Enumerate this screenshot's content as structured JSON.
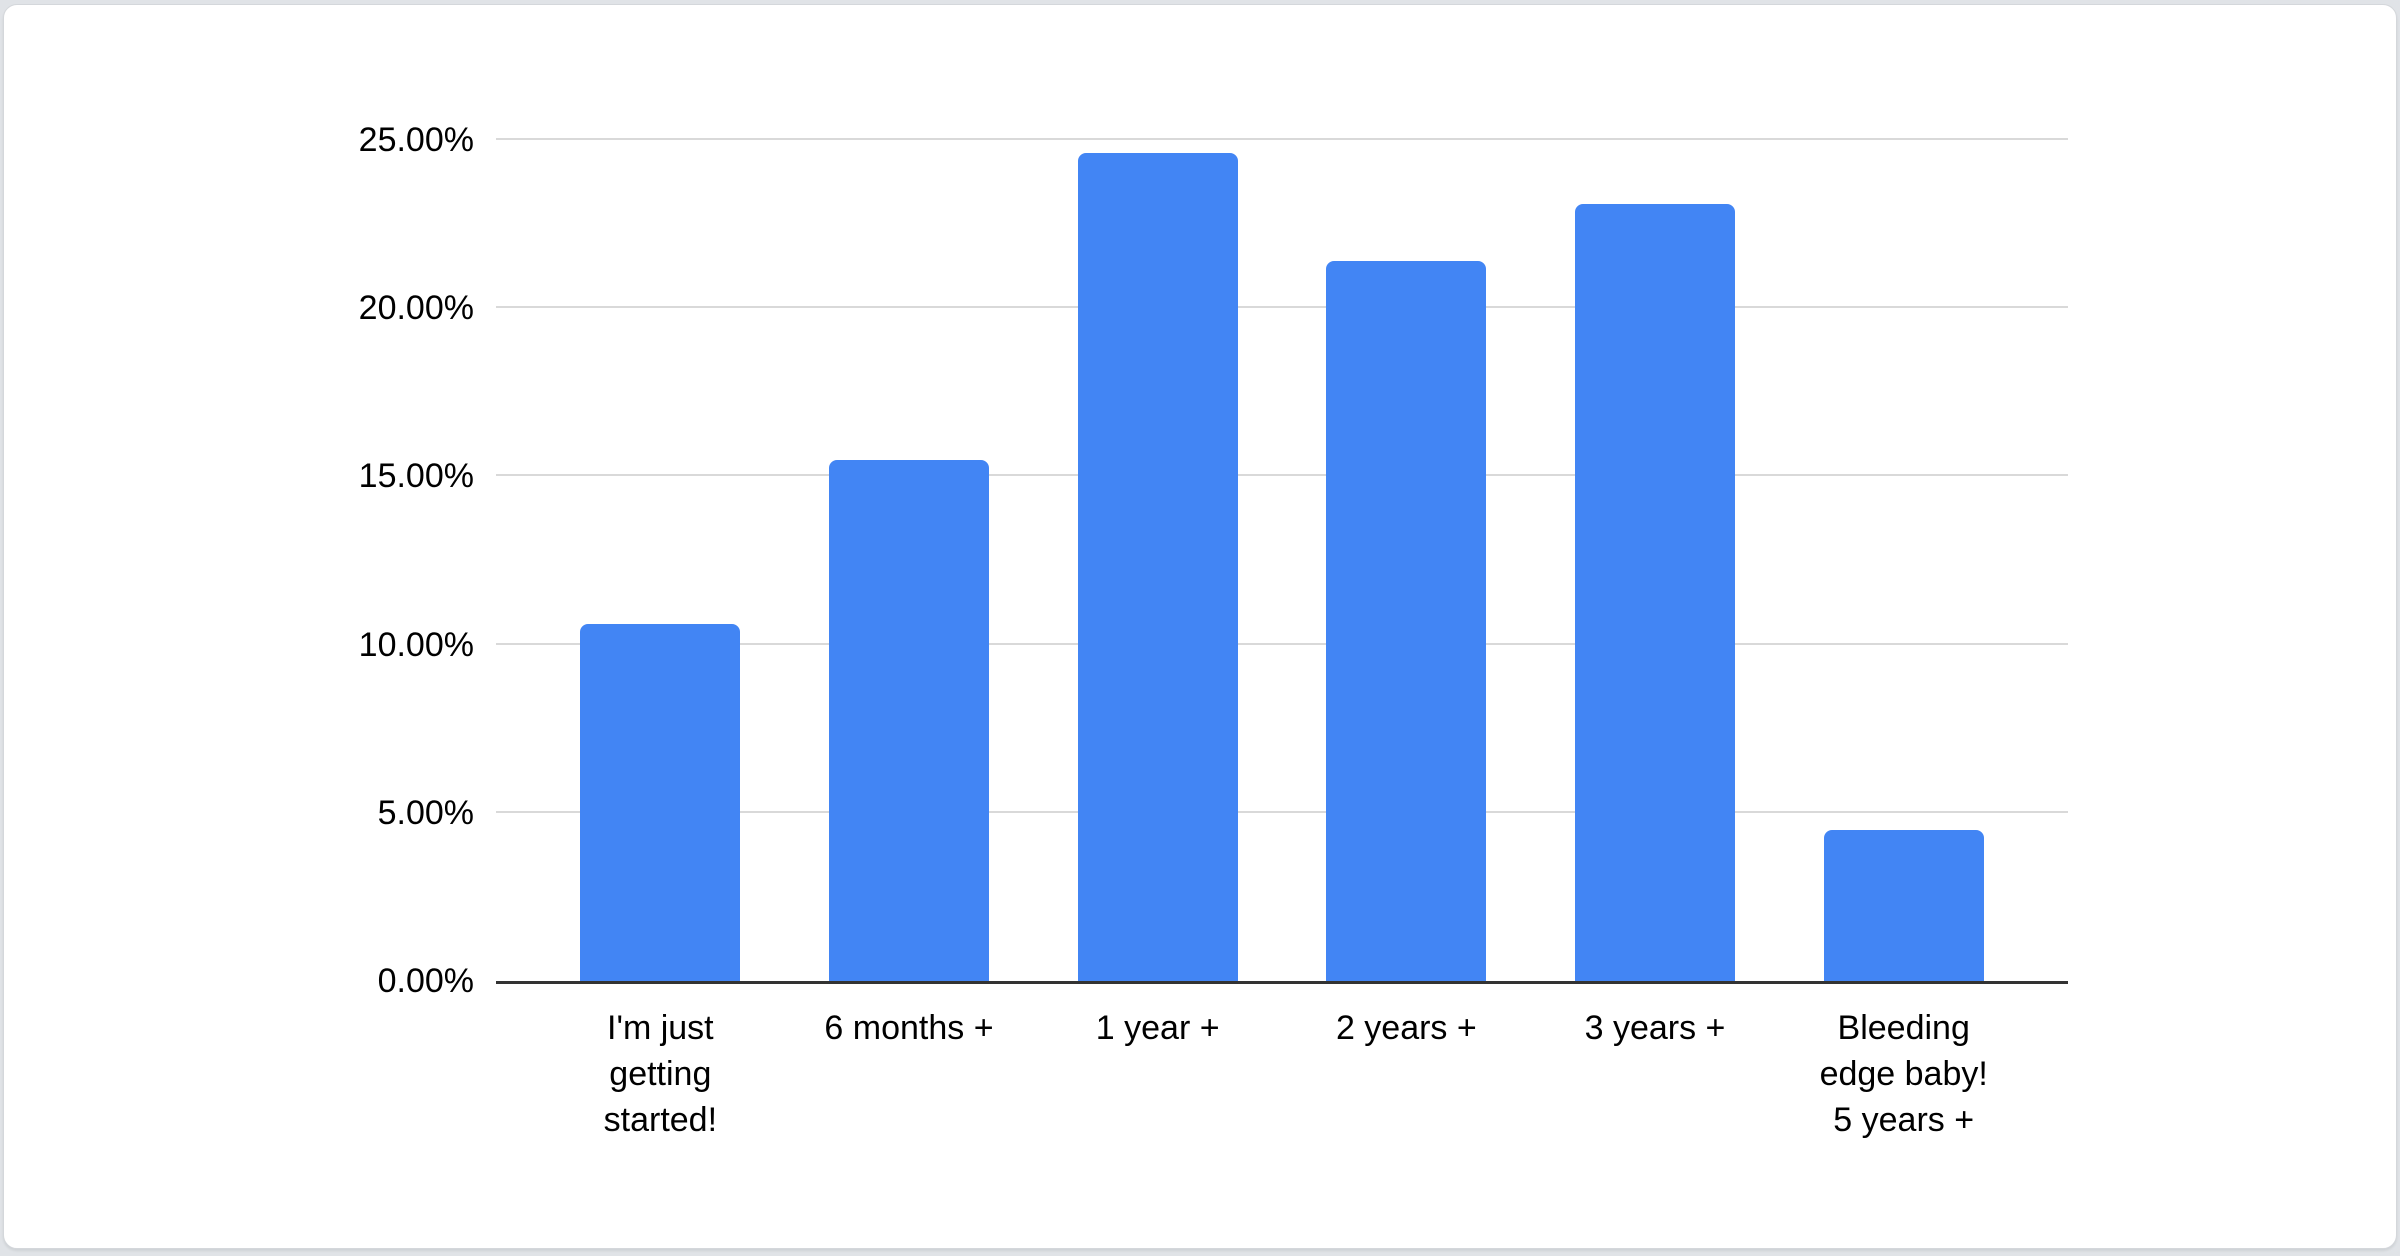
{
  "page": {
    "background_color": "#e0e3e7",
    "card_background_color": "#ffffff"
  },
  "chart_data": {
    "type": "bar",
    "title": "",
    "categories": [
      "I'm just getting started!",
      "6 months +",
      "1 year +",
      "2 years +",
      "3 years +",
      "Bleeding edge baby! 5 years +"
    ],
    "category_lines": [
      [
        "I'm just",
        "getting",
        "started!"
      ],
      [
        "6 months +"
      ],
      [
        "1 year +"
      ],
      [
        "2 years +"
      ],
      [
        "3 years +"
      ],
      [
        "Bleeding",
        "edge baby!",
        "5 years +"
      ]
    ],
    "values": [
      10.6,
      15.5,
      24.6,
      21.4,
      23.1,
      4.5
    ],
    "value_unit": "%",
    "ylim": [
      0,
      25
    ],
    "y_tick_values": [
      0,
      5,
      10,
      15,
      20,
      25
    ],
    "y_tick_labels": [
      "0.00%",
      "5.00%",
      "10.00%",
      "15.00%",
      "20.00%",
      "25.00%"
    ],
    "grid": true,
    "legend": "none",
    "bar_color": "#4285f4",
    "gridline_color": "#d9d9d9",
    "axis_line_color": "#333333",
    "text_color": "#000000"
  }
}
